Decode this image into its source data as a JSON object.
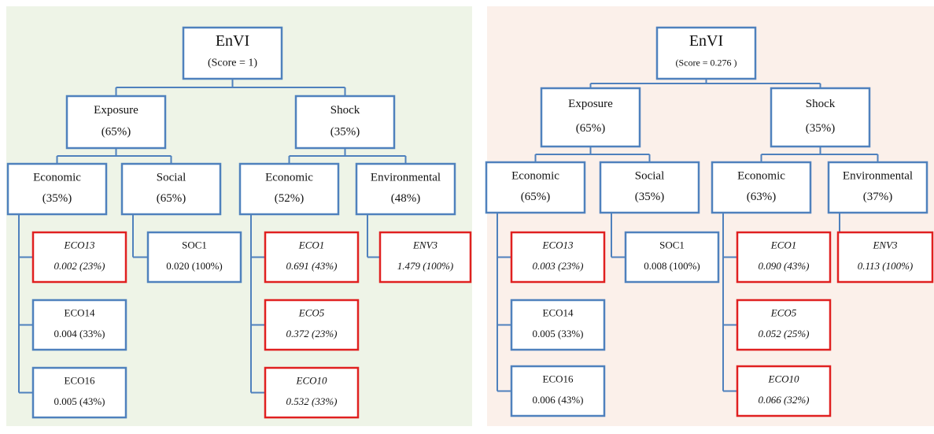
{
  "panels": [
    {
      "nodes": [
        {
          "lines": [
            "EnVI",
            "(Score = 1)"
          ],
          "highlighted": false
        },
        {
          "lines": [
            "Exposure",
            "(65%)"
          ],
          "highlighted": false
        },
        {
          "lines": [
            "Shock",
            "(35%)"
          ],
          "highlighted": false
        },
        {
          "lines": [
            "Economic",
            "(35%)"
          ],
          "highlighted": false
        },
        {
          "lines": [
            "Social",
            "(65%)"
          ],
          "highlighted": false
        },
        {
          "lines": [
            "Economic",
            "(52%)"
          ],
          "highlighted": false
        },
        {
          "lines": [
            "Environmental",
            "(48%)"
          ],
          "highlighted": false
        },
        {
          "lines": [
            "ECO13",
            "0.002 (23%)"
          ],
          "highlighted": true
        },
        {
          "lines": [
            "SOC1",
            "0.020 (100%)"
          ],
          "highlighted": false
        },
        {
          "lines": [
            "ECO1",
            "0.691 (43%)"
          ],
          "highlighted": true
        },
        {
          "lines": [
            "ENV3",
            "1.479 (100%)"
          ],
          "highlighted": true
        },
        {
          "lines": [
            "ECO14",
            "0.004 (33%)"
          ],
          "highlighted": false
        },
        {
          "lines": [
            "ECO5",
            "0.372  (23%)"
          ],
          "highlighted": true
        },
        {
          "lines": [
            "ECO16",
            "0.005  (43%)"
          ],
          "highlighted": false
        },
        {
          "lines": [
            "ECO10",
            "0.532 (33%)"
          ],
          "highlighted": true
        }
      ]
    },
    {
      "nodes": [
        {
          "lines": [
            "EnVI",
            "(Score = 0.276 )"
          ],
          "highlighted": false
        },
        {
          "lines": [
            "Exposure",
            "(65%)"
          ],
          "highlighted": false
        },
        {
          "lines": [
            "Shock",
            "(35%)"
          ],
          "highlighted": false
        },
        {
          "lines": [
            "Economic",
            "(65%)"
          ],
          "highlighted": false
        },
        {
          "lines": [
            "Social",
            "(35%)"
          ],
          "highlighted": false
        },
        {
          "lines": [
            "Economic",
            "(63%)"
          ],
          "highlighted": false
        },
        {
          "lines": [
            "Environmental",
            "(37%)"
          ],
          "highlighted": false
        },
        {
          "lines": [
            "ECO13",
            "0.003 (23%)"
          ],
          "highlighted": true
        },
        {
          "lines": [
            "SOC1",
            "0.008 (100%)"
          ],
          "highlighted": false
        },
        {
          "lines": [
            "ECO1",
            "0.090 (43%)"
          ],
          "highlighted": true
        },
        {
          "lines": [
            "ENV3",
            "0.113 (100%)"
          ],
          "highlighted": true
        },
        {
          "lines": [
            "ECO14",
            "0.005 (33%)"
          ],
          "highlighted": false
        },
        {
          "lines": [
            "ECO5",
            "0.052 (25%)"
          ],
          "highlighted": true
        },
        {
          "lines": [
            "ECO16",
            "0.006 (43%)"
          ],
          "highlighted": false
        },
        {
          "lines": [
            "ECO10",
            "0.066 (32%)"
          ],
          "highlighted": true
        }
      ]
    }
  ]
}
